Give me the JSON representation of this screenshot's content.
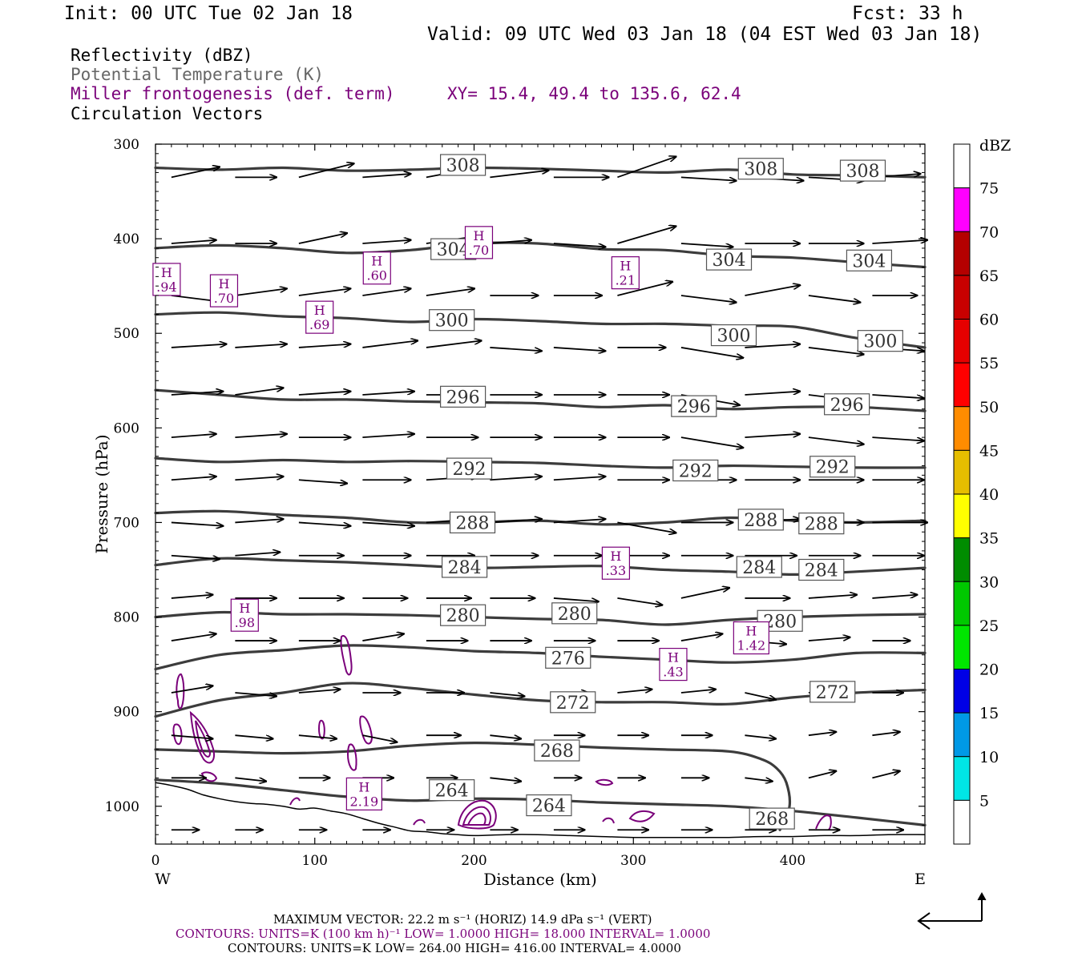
{
  "header": {
    "init": "Init: 00 UTC Tue 02 Jan 18",
    "fcst": "Fcst:   33 h",
    "valid": "Valid: 09 UTC Wed 03 Jan 18 (04 EST Wed 03 Jan 18)"
  },
  "fields": {
    "reflectivity": "Reflectivity (dBZ)",
    "theta": "Potential Temperature (K)",
    "miller": "Miller frontogenesis (def. term)",
    "xy": "XY=  15.4, 49.4 to 135.6, 62.4",
    "vectors": "Circulation Vectors"
  },
  "colors": {
    "theta": "#3c3c3c",
    "miller": "#7a007a",
    "vector": "#000000",
    "terrain": "#000000"
  },
  "chart_data": {
    "type": "cross-section",
    "xlabel": "Distance (km)",
    "ylabel": "Pressure (hPa)",
    "xlim": [
      0,
      483
    ],
    "ylim": [
      300,
      1040
    ],
    "x_ticks": [
      0,
      100,
      200,
      300,
      400
    ],
    "y_ticks": [
      300,
      400,
      500,
      600,
      700,
      800,
      900,
      1000
    ],
    "west_label": "W",
    "east_label": "E",
    "theta_levels": [
      {
        "k": 308,
        "p": [
          325,
          327,
          325,
          328,
          327,
          325,
          326,
          328,
          330,
          327,
          332,
          333,
          335
        ]
      },
      {
        "k": 304,
        "p": [
          410,
          407,
          410,
          415,
          412,
          405,
          405,
          411,
          412,
          418,
          420,
          425,
          430
        ]
      },
      {
        "k": 300,
        "p": [
          480,
          478,
          482,
          484,
          488,
          485,
          487,
          490,
          490,
          492,
          493,
          505,
          515
        ]
      },
      {
        "k": 296,
        "p": [
          560,
          565,
          570,
          570,
          572,
          573,
          574,
          578,
          576,
          580,
          578,
          578,
          582
        ]
      },
      {
        "k": 292,
        "p": [
          632,
          636,
          634,
          636,
          635,
          636,
          637,
          640,
          642,
          640,
          641,
          642,
          642
        ]
      },
      {
        "k": 288,
        "p": [
          690,
          688,
          692,
          695,
          700,
          700,
          698,
          702,
          700,
          695,
          698,
          700,
          698
        ]
      },
      {
        "k": 284,
        "p": [
          745,
          738,
          740,
          742,
          745,
          748,
          747,
          746,
          750,
          752,
          755,
          752,
          748
        ]
      },
      {
        "k": 280,
        "p": [
          800,
          795,
          797,
          797,
          798,
          800,
          802,
          803,
          808,
          803,
          800,
          798,
          797
        ]
      },
      {
        "k": 276,
        "p": [
          855,
          840,
          835,
          830,
          832,
          836,
          838,
          842,
          845,
          848,
          845,
          838,
          838
        ]
      },
      {
        "k": 272,
        "p": [
          905,
          888,
          880,
          870,
          875,
          882,
          888,
          890,
          890,
          892,
          885,
          880,
          877
        ]
      },
      {
        "k": 268,
        "p": [
          940,
          942,
          944,
          942,
          936,
          933,
          935,
          938,
          940,
          942,
          950,
          960,
          975,
          1000,
          1025
        ]
      },
      {
        "k": 264,
        "p": [
          972,
          976,
          983,
          990,
          994,
          992,
          993,
          996,
          998,
          1000,
          1005,
          1012,
          1020
        ]
      }
    ],
    "theta_x": [
      0,
      40,
      80,
      120,
      160,
      200,
      240,
      280,
      320,
      360,
      400,
      440,
      483
    ],
    "theta_268_x": [
      0,
      40,
      80,
      120,
      160,
      200,
      240,
      280,
      320,
      360,
      380,
      390,
      396,
      398,
      392
    ],
    "theta_labels": [
      {
        "k": 308,
        "x": 193,
        "p": 322
      },
      {
        "k": 308,
        "x": 380,
        "p": 326
      },
      {
        "k": 308,
        "x": 444,
        "p": 328
      },
      {
        "k": 304,
        "x": 187,
        "p": 411
      },
      {
        "k": 304,
        "x": 360,
        "p": 422
      },
      {
        "k": 304,
        "x": 448,
        "p": 423
      },
      {
        "k": 300,
        "x": 186,
        "p": 486
      },
      {
        "k": 300,
        "x": 363,
        "p": 502
      },
      {
        "k": 300,
        "x": 455,
        "p": 508
      },
      {
        "k": 296,
        "x": 193,
        "p": 567
      },
      {
        "k": 296,
        "x": 338,
        "p": 577
      },
      {
        "k": 296,
        "x": 434,
        "p": 575
      },
      {
        "k": 292,
        "x": 197,
        "p": 643
      },
      {
        "k": 292,
        "x": 339,
        "p": 645
      },
      {
        "k": 292,
        "x": 425,
        "p": 641
      },
      {
        "k": 288,
        "x": 199,
        "p": 700
      },
      {
        "k": 288,
        "x": 380,
        "p": 697
      },
      {
        "k": 288,
        "x": 418,
        "p": 701
      },
      {
        "k": 284,
        "x": 194,
        "p": 747
      },
      {
        "k": 284,
        "x": 379,
        "p": 747
      },
      {
        "k": 284,
        "x": 418,
        "p": 750
      },
      {
        "k": 280,
        "x": 193,
        "p": 798
      },
      {
        "k": 280,
        "x": 263,
        "p": 796
      },
      {
        "k": 280,
        "x": 392,
        "p": 804
      },
      {
        "k": 276,
        "x": 259,
        "p": 843
      },
      {
        "k": 272,
        "x": 262,
        "p": 890
      },
      {
        "k": 272,
        "x": 425,
        "p": 879
      },
      {
        "k": 268,
        "x": 252,
        "p": 941
      },
      {
        "k": 268,
        "x": 387,
        "p": 1013
      },
      {
        "k": 264,
        "x": 186,
        "p": 983
      },
      {
        "k": 264,
        "x": 247,
        "p": 999
      }
    ],
    "frontogenesis_highs": [
      {
        "label": "H",
        "value": ".94",
        "x": 7,
        "p": 443
      },
      {
        "label": "H",
        "value": ".70",
        "x": 43,
        "p": 455
      },
      {
        "label": "H",
        "value": ".69",
        "x": 103,
        "p": 483
      },
      {
        "label": "H",
        "value": ".60",
        "x": 139,
        "p": 431
      },
      {
        "label": "H",
        "value": ".70",
        "x": 203,
        "p": 404
      },
      {
        "label": "H",
        "value": ".21",
        "x": 295,
        "p": 436
      },
      {
        "label": "H",
        "value": ".33",
        "x": 289,
        "p": 743
      },
      {
        "label": "H",
        "value": ".98",
        "x": 56,
        "p": 798
      },
      {
        "label": "H",
        "value": "1.42",
        "x": 374,
        "p": 822
      },
      {
        "label": "H",
        "value": ".43",
        "x": 325,
        "p": 850
      },
      {
        "label": "H",
        "value": "2.19",
        "x": 131,
        "p": 987
      }
    ],
    "vectors_spec": {
      "rows_p": [
        335,
        405,
        460,
        515,
        565,
        610,
        655,
        700,
        735,
        780,
        825,
        880,
        925,
        970,
        1025
      ],
      "cols_x": [
        10,
        50,
        90,
        130,
        170,
        210,
        250,
        290,
        330,
        370,
        410,
        450
      ]
    },
    "vectors": [
      [
        [
          14,
          -3
        ],
        [
          12,
          0
        ],
        [
          16,
          -4
        ],
        [
          14,
          -1
        ],
        [
          16,
          -3
        ],
        [
          17,
          -2
        ],
        [
          16,
          0
        ],
        [
          17,
          -6
        ],
        [
          16,
          1
        ],
        [
          17,
          1
        ],
        [
          16,
          1
        ],
        [
          14,
          -1
        ]
      ],
      [
        [
          13,
          -1
        ],
        [
          12,
          0
        ],
        [
          14,
          -3
        ],
        [
          14,
          -1
        ],
        [
          14,
          -2
        ],
        [
          12,
          -1
        ],
        [
          15,
          1
        ],
        [
          17,
          -5
        ],
        [
          15,
          1
        ],
        [
          16,
          0
        ],
        [
          16,
          0
        ],
        [
          16,
          -1
        ]
      ],
      [
        [
          16,
          2
        ],
        [
          15,
          -2
        ],
        [
          15,
          -2
        ],
        [
          14,
          -2
        ],
        [
          14,
          -2
        ],
        [
          14,
          0
        ],
        [
          14,
          0
        ],
        [
          16,
          -4
        ],
        [
          16,
          2
        ],
        [
          16,
          -3
        ],
        [
          15,
          2
        ],
        [
          13,
          0
        ]
      ],
      [
        [
          16,
          -1
        ],
        [
          15,
          -1
        ],
        [
          15,
          -1
        ],
        [
          16,
          -2
        ],
        [
          16,
          -2
        ],
        [
          15,
          1
        ],
        [
          15,
          1
        ],
        [
          14,
          0
        ],
        [
          18,
          3
        ],
        [
          16,
          -1
        ],
        [
          16,
          2
        ],
        [
          15,
          1
        ]
      ],
      [
        [
          15,
          -1
        ],
        [
          14,
          -2
        ],
        [
          15,
          -1
        ],
        [
          15,
          -1
        ],
        [
          15,
          0
        ],
        [
          15,
          0
        ],
        [
          15,
          0
        ],
        [
          15,
          0
        ],
        [
          17,
          3
        ],
        [
          16,
          -1
        ],
        [
          16,
          2
        ],
        [
          15,
          1
        ]
      ],
      [
        [
          13,
          -1
        ],
        [
          15,
          -1
        ],
        [
          15,
          0
        ],
        [
          15,
          -1
        ],
        [
          15,
          0
        ],
        [
          15,
          0
        ],
        [
          15,
          0
        ],
        [
          15,
          0
        ],
        [
          18,
          3
        ],
        [
          16,
          -1
        ],
        [
          16,
          2
        ],
        [
          15,
          1
        ]
      ],
      [
        [
          13,
          -1
        ],
        [
          14,
          -1
        ],
        [
          14,
          1
        ],
        [
          14,
          0
        ],
        [
          15,
          -1
        ],
        [
          15,
          -1
        ],
        [
          15,
          -1
        ],
        [
          15,
          0
        ],
        [
          16,
          0
        ],
        [
          16,
          0
        ],
        [
          16,
          0
        ],
        [
          15,
          0
        ]
      ],
      [
        [
          15,
          1
        ],
        [
          14,
          -1
        ],
        [
          15,
          1
        ],
        [
          15,
          1
        ],
        [
          15,
          -1
        ],
        [
          15,
          -1
        ],
        [
          15,
          -1
        ],
        [
          17,
          3
        ],
        [
          15,
          0
        ],
        [
          16,
          -1
        ],
        [
          16,
          0
        ],
        [
          16,
          0
        ]
      ],
      [
        [
          14,
          1
        ],
        [
          13,
          -1
        ],
        [
          13,
          0
        ],
        [
          14,
          0
        ],
        [
          14,
          0
        ],
        [
          14,
          0
        ],
        [
          14,
          0
        ],
        [
          15,
          0
        ],
        [
          15,
          0
        ],
        [
          15,
          0
        ],
        [
          15,
          0
        ],
        [
          15,
          0
        ]
      ],
      [
        [
          12,
          -1
        ],
        [
          12,
          0
        ],
        [
          13,
          0
        ],
        [
          13,
          0
        ],
        [
          13,
          0
        ],
        [
          13,
          0
        ],
        [
          13,
          1
        ],
        [
          13,
          2
        ],
        [
          14,
          -3
        ],
        [
          13,
          0
        ],
        [
          14,
          -1
        ],
        [
          13,
          -1
        ]
      ],
      [
        [
          13,
          -2
        ],
        [
          12,
          0
        ],
        [
          12,
          0
        ],
        [
          12,
          -2
        ],
        [
          12,
          0
        ],
        [
          12,
          0
        ],
        [
          12,
          0
        ],
        [
          12,
          0
        ],
        [
          12,
          -2
        ],
        [
          12,
          1
        ],
        [
          12,
          -1
        ],
        [
          11,
          0
        ]
      ],
      [
        [
          12,
          -2
        ],
        [
          12,
          1
        ],
        [
          12,
          -1
        ],
        [
          11,
          0
        ],
        [
          11,
          0
        ],
        [
          10,
          1
        ],
        [
          10,
          0
        ],
        [
          10,
          -1
        ],
        [
          10,
          -1
        ],
        [
          9,
          2
        ],
        [
          9,
          -1
        ],
        [
          9,
          0
        ]
      ],
      [
        [
          12,
          1
        ],
        [
          11,
          1
        ],
        [
          11,
          1
        ],
        [
          10,
          2
        ],
        [
          10,
          0
        ],
        [
          9,
          1
        ],
        [
          9,
          0
        ],
        [
          9,
          0
        ],
        [
          9,
          0
        ],
        [
          9,
          1
        ],
        [
          8,
          -1
        ],
        [
          8,
          -1
        ]
      ],
      [
        [
          10,
          0
        ],
        [
          9,
          1
        ],
        [
          9,
          0
        ],
        [
          9,
          0
        ],
        [
          9,
          0
        ],
        [
          9,
          1
        ],
        [
          8,
          0
        ],
        [
          8,
          0
        ],
        [
          8,
          0
        ],
        [
          8,
          1
        ],
        [
          8,
          -2
        ],
        [
          8,
          -2
        ]
      ],
      [
        [
          8,
          0
        ],
        [
          8,
          0
        ],
        [
          8,
          0
        ],
        [
          8,
          0
        ],
        [
          8,
          0
        ],
        [
          8,
          0
        ],
        [
          9,
          0
        ],
        [
          9,
          0
        ],
        [
          9,
          0
        ],
        [
          9,
          0
        ],
        [
          9,
          0
        ],
        [
          9,
          0
        ]
      ]
    ],
    "terrain": {
      "x": [
        0,
        10,
        20,
        30,
        40,
        50,
        60,
        70,
        80,
        90,
        100,
        110,
        120,
        130,
        140,
        150,
        160,
        170,
        180,
        190,
        200,
        220,
        240,
        260,
        280,
        300,
        320,
        340,
        360,
        380,
        400,
        420,
        440,
        460,
        483
      ],
      "p": [
        975,
        978,
        982,
        988,
        992,
        995,
        997,
        998,
        1000,
        1003,
        1002,
        1005,
        1008,
        1013,
        1018,
        1022,
        1026,
        1027,
        1029,
        1030,
        1031,
        1030,
        1030,
        1031,
        1032,
        1033,
        1033,
        1033,
        1033,
        1032,
        1032,
        1031,
        1031,
        1030,
        1030
      ]
    },
    "colorbar": {
      "title": "dBZ",
      "levels": [
        5,
        10,
        15,
        20,
        25,
        30,
        35,
        40,
        45,
        50,
        55,
        60,
        65,
        70,
        75
      ],
      "colors": [
        "#00e6e6",
        "#0099e6",
        "#0000e6",
        "#00e600",
        "#00c800",
        "#008c00",
        "#ffff00",
        "#e6be00",
        "#ff8c00",
        "#ff0000",
        "#e60000",
        "#c80000",
        "#b40000",
        "#ff00ff",
        "#9955c9"
      ]
    }
  },
  "footer": {
    "max_vector": "MAXIMUM VECTOR:  22.2 m s⁻¹ (HORIZ)          14.9 dPa s⁻¹ (VERT)",
    "contours_miller": "CONTOURS:  UNITS=K (100 km h)⁻¹  LOW=   1.0000          HIGH=   18.000          INTERVAL=    1.0000",
    "contours_theta": "CONTOURS:  UNITS=K  LOW=   264.00           HIGH=   416.00           INTERVAL=    4.0000"
  }
}
